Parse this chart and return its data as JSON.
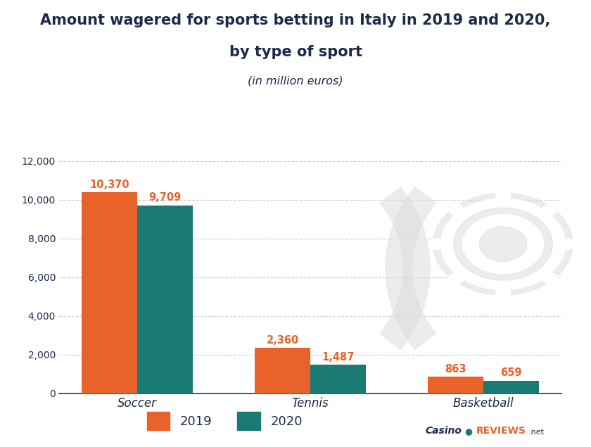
{
  "title_line1": "Amount wagered for sports betting in Italy in 2019 and 2020,",
  "title_line2": "by type of sport",
  "subtitle": "(in million euros)",
  "categories": [
    "Soccer",
    "Tennis",
    "Basketball"
  ],
  "values_2019": [
    10370,
    2360,
    863
  ],
  "values_2020": [
    9709,
    1487,
    659
  ],
  "labels_2019": [
    "10,370",
    "2,360",
    "863"
  ],
  "labels_2020": [
    "9,709",
    "1,487",
    "659"
  ],
  "color_2019": "#E8622A",
  "color_2020": "#1A7A74",
  "background_color": "#FFFFFF",
  "title_color": "#1B2A4A",
  "subtitle_color": "#1B2A4A",
  "axis_label_color": "#1B2A4A",
  "bar_label_color": "#E8622A",
  "ylim": [
    0,
    12000
  ],
  "yticks": [
    0,
    2000,
    4000,
    6000,
    8000,
    10000,
    12000
  ],
  "ytick_labels": [
    "0",
    "2,000",
    "4,000",
    "6,000",
    "8,000",
    "10,000",
    "12,000"
  ],
  "bar_width": 0.32,
  "grid_color": "#CCCCCC",
  "legend_2019": "2019",
  "legend_2020": "2020",
  "watermark_color": "#DDDDDD",
  "logo_text_casino": "Casino",
  "logo_text_reviews": "REVIEWS",
  "logo_text_net": ".net",
  "logo_color_casino": "#1B2A4A",
  "logo_color_reviews": "#E8622A",
  "logo_color_net": "#1B2A4A"
}
